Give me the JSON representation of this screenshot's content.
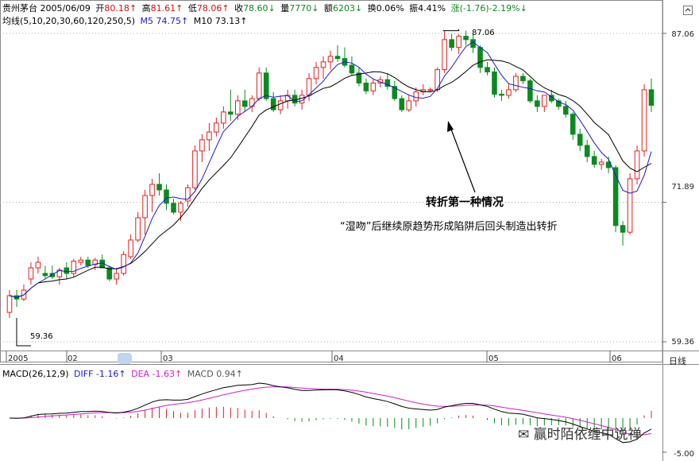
{
  "header": {
    "stock_name": "贵州茅台",
    "date": "2005/06/09",
    "open_label": "开",
    "open": "80.18↑",
    "high_label": "高",
    "high": "81.61↑",
    "low_label": "低",
    "low": "78.06↑",
    "close_label": "收",
    "close": "78.60↓",
    "volume_label": "量",
    "volume": "7770↓",
    "amount_label": "额",
    "amount": "6203↓",
    "turnover_label": "换",
    "turnover": "0.06%",
    "amplitude_label": "振",
    "amplitude": "4.41%",
    "change_label": "涨",
    "change": "(-1.76)-2.19%↓"
  },
  "ma": {
    "label": "均线(5,10,20,30,60,120,250,5)",
    "m5": "M5 74.75↑",
    "m10": "M10 73.13↑"
  },
  "macd_panel": {
    "label": "MACD(26,12,9)",
    "diff": "DIFF -1.16↑",
    "dea": "DEA -1.63↑",
    "macd": "MACD 0.94↑",
    "top_value": "",
    "bottom_value": "-5.00"
  },
  "y_axis": {
    "top": "87.06",
    "mid": "71.89",
    "bottom": "59.36"
  },
  "x_axis": [
    "2005",
    "02",
    "03",
    "04",
    "05",
    "06"
  ],
  "period_label": "日线",
  "price_marks": {
    "high": "87.06",
    "low": "59.36"
  },
  "annotation": {
    "title": "转折第一种情况",
    "text": "“湿吻”后继续原趋势形成陷阱后回头制造出转折"
  },
  "watermark": "赢时陌依缠中说禅",
  "colors": {
    "up": "#e02020",
    "down": "#0a8a20",
    "ma5": "#1a1acc",
    "ma10": "#000000",
    "dea": "#cc20cc",
    "label_red": "#d01010",
    "label_green": "#0a8a20"
  },
  "candles": [
    [
      62,
      64,
      61.5,
      63.5
    ],
    [
      63.5,
      64,
      62.5,
      63.2
    ],
    [
      63.2,
      64.5,
      63,
      64
    ],
    [
      65,
      66.5,
      64.5,
      66
    ],
    [
      66,
      67,
      65.5,
      66.5
    ],
    [
      65.5,
      66.2,
      65,
      65.3
    ],
    [
      65.5,
      66.2,
      65,
      65.2
    ],
    [
      65.2,
      66,
      64.5,
      65.8
    ],
    [
      66,
      66.5,
      65,
      65.5
    ],
    [
      65.5,
      66.8,
      65.2,
      66.6
    ],
    [
      66.5,
      67,
      66.2,
      66.7
    ],
    [
      66.7,
      67,
      66,
      66.2
    ],
    [
      66.3,
      66.9,
      65.8,
      66.7
    ],
    [
      66.7,
      67.2,
      66,
      66
    ],
    [
      66,
      66.2,
      64.8,
      65
    ],
    [
      65,
      66,
      64.5,
      65.5
    ],
    [
      65.5,
      67.5,
      65.3,
      67.2
    ],
    [
      67,
      69,
      66.8,
      68.5
    ],
    [
      68.5,
      71,
      68.3,
      70.5
    ],
    [
      70.5,
      73,
      69,
      72.5
    ],
    [
      72.5,
      74,
      71,
      73.5
    ],
    [
      73.5,
      74.5,
      72.5,
      73
    ],
    [
      73,
      73.5,
      71.2,
      71.8
    ],
    [
      71.8,
      72.2,
      70.8,
      71
    ],
    [
      71,
      72,
      70.2,
      71.8
    ],
    [
      72,
      73.5,
      71.5,
      73.2
    ],
    [
      73.2,
      77,
      73,
      76.5
    ],
    [
      76.5,
      78,
      75.5,
      77.5
    ],
    [
      77.5,
      79,
      76.5,
      78.2
    ],
    [
      78.2,
      79.5,
      77.8,
      79
    ],
    [
      79,
      80.5,
      78.5,
      80
    ],
    [
      80,
      82,
      79.2,
      79.8
    ],
    [
      79.8,
      81.5,
      79.3,
      81
    ],
    [
      81,
      82,
      80,
      80.5
    ],
    [
      80.5,
      81.5,
      80,
      81.2
    ],
    [
      81.2,
      84,
      81,
      83.5
    ],
    [
      83.5,
      84,
      81,
      81.2
    ],
    [
      81.2,
      81.8,
      80,
      80.2
    ],
    [
      80.2,
      81.5,
      79.8,
      81
    ],
    [
      81,
      82,
      80.3,
      81.5
    ],
    [
      81.5,
      82,
      80.5,
      80.8
    ],
    [
      80.8,
      82,
      80.2,
      81.5
    ],
    [
      81.5,
      83.5,
      81,
      83
    ],
    [
      83,
      84.5,
      82.5,
      84
    ],
    [
      84,
      85,
      83,
      84.5
    ],
    [
      84.5,
      85.5,
      83.8,
      85
    ],
    [
      85,
      86,
      84.5,
      84.8
    ],
    [
      84.8,
      85.8,
      84,
      84.2
    ],
    [
      84.2,
      85,
      83.3,
      83.5
    ],
    [
      83.5,
      84,
      82.3,
      82.6
    ],
    [
      82.6,
      83,
      81.6,
      81.9
    ],
    [
      81.9,
      83,
      81.5,
      82.6
    ],
    [
      82.6,
      83.2,
      82.2,
      82.9
    ],
    [
      82.9,
      83.5,
      82,
      82.3
    ],
    [
      82.3,
      82.8,
      81,
      81.2
    ],
    [
      81.2,
      81.5,
      80,
      80.2
    ],
    [
      80.2,
      81.5,
      80,
      81
    ],
    [
      81,
      82.2,
      80.5,
      81.8
    ],
    [
      81.8,
      82.5,
      81.5,
      82
    ],
    [
      82,
      82.2,
      81.8,
      82
    ],
    [
      82,
      84,
      81.8,
      83.8
    ],
    [
      83.8,
      87.3,
      83.5,
      86.5
    ],
    [
      86.5,
      87,
      85.5,
      85.8
    ],
    [
      85.8,
      87,
      85.2,
      86.8
    ],
    [
      86.8,
      87.3,
      86,
      86.5
    ],
    [
      86.5,
      87,
      85.3,
      85.8
    ],
    [
      85.8,
      86,
      83.5,
      84
    ],
    [
      84,
      84.5,
      83.3,
      83.6
    ],
    [
      83.6,
      84,
      81.3,
      81.6
    ],
    [
      81.6,
      82,
      81,
      81.5
    ],
    [
      81.5,
      82.5,
      81.2,
      82
    ],
    [
      82,
      83.5,
      81.8,
      83.2
    ],
    [
      83.2,
      83.5,
      82.5,
      82.8
    ],
    [
      82.8,
      83,
      80.8,
      81
    ],
    [
      81,
      81.5,
      80,
      80.5
    ],
    [
      80.5,
      81.5,
      80,
      81.5
    ],
    [
      81.5,
      82,
      80.8,
      81
    ],
    [
      81,
      81.2,
      80.2,
      80.5
    ],
    [
      80.5,
      81,
      79.5,
      79.8
    ],
    [
      79.8,
      80,
      77.5,
      78
    ],
    [
      78,
      78.5,
      76.5,
      77
    ],
    [
      77,
      77.5,
      75.5,
      76
    ],
    [
      76,
      76.5,
      75,
      75.3
    ],
    [
      75.3,
      75.8,
      74.8,
      75.5
    ],
    [
      75.5,
      76,
      74.5,
      75
    ],
    [
      75,
      75.2,
      69.2,
      69.8
    ],
    [
      69.8,
      70.2,
      68,
      69.2
    ],
    [
      69.2,
      74.5,
      69,
      74
    ],
    [
      74,
      77,
      73.5,
      76.5
    ],
    [
      76.5,
      82.5,
      76,
      82
    ],
    [
      82,
      83,
      80,
      80.6
    ]
  ]
}
